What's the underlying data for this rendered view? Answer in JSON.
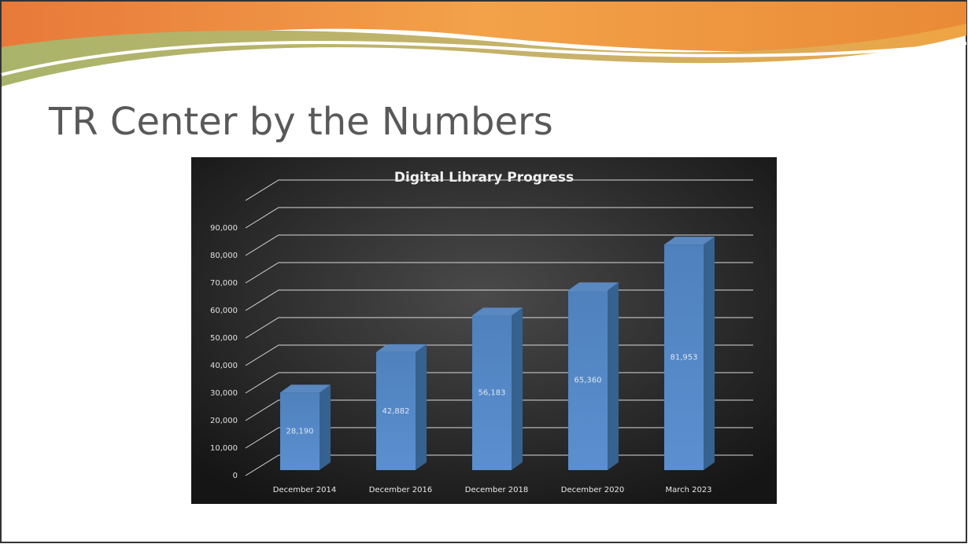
{
  "slide_title": "TR Center by the Numbers",
  "chart_data": {
    "type": "bar3d",
    "title": "Digital Library Progress",
    "categories": [
      "December 2014",
      "December 2016",
      "December 2018",
      "December 2020",
      "March 2023"
    ],
    "values": [
      28190,
      42882,
      56183,
      65360,
      81953
    ],
    "value_labels": [
      "28,190",
      "42,882",
      "56,183",
      "65,360",
      "81,953"
    ],
    "color": "#4f81bd",
    "ylim": [
      0,
      100000
    ],
    "yticks": [
      0,
      {
        "value": 10000,
        "label": "10,000"
      },
      {
        "value": 20000,
        "label": "20,000"
      },
      {
        "value": 30000,
        "label": "30,000"
      },
      {
        "value": 40000,
        "label": "40,000"
      },
      {
        "value": 50000,
        "label": "50,000"
      },
      {
        "value": 60000,
        "label": "60,000"
      },
      {
        "value": 70000,
        "label": "70,000"
      },
      {
        "value": 80000,
        "label": "80,000"
      },
      {
        "value": 90000,
        "label": "90,000"
      }
    ],
    "grid": true
  }
}
